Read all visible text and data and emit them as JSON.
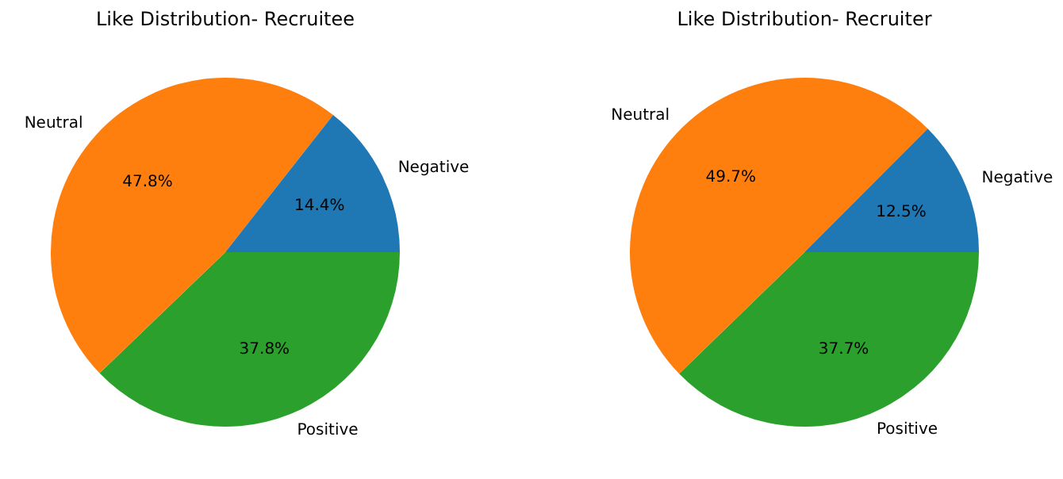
{
  "chart_data": [
    {
      "type": "pie",
      "title": "Like Distribution- Recruitee",
      "categories": [
        "Negative",
        "Neutral",
        "Positive"
      ],
      "values": [
        14.4,
        47.8,
        37.8
      ],
      "value_labels": [
        "14.4%",
        "47.8%",
        "37.8%"
      ],
      "colors": [
        "#1f77b4",
        "#ff7f0e",
        "#2ca02c"
      ]
    },
    {
      "type": "pie",
      "title": "Like Distribution- Recruiter",
      "categories": [
        "Negative",
        "Neutral",
        "Positive"
      ],
      "values": [
        12.5,
        49.7,
        37.7
      ],
      "value_labels": [
        "12.5%",
        "49.7%",
        "37.7%"
      ],
      "colors": [
        "#1f77b4",
        "#ff7f0e",
        "#2ca02c"
      ]
    }
  ]
}
